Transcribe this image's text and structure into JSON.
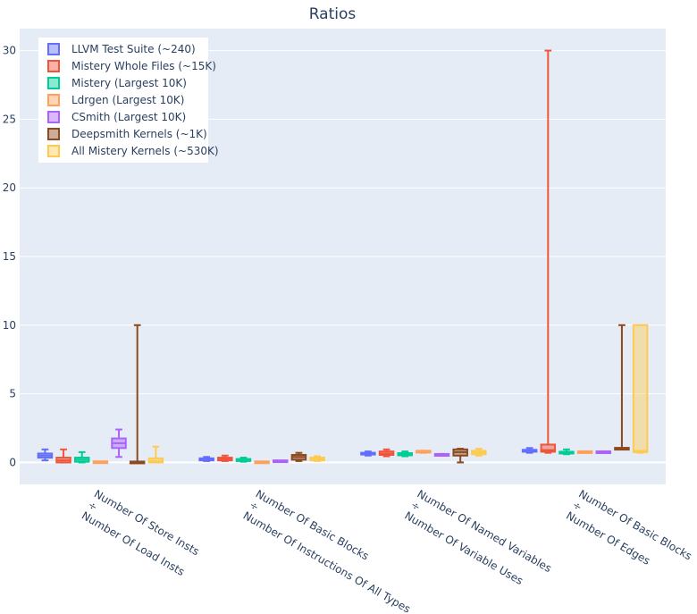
{
  "chart_data": {
    "type": "box",
    "title": "Ratios",
    "ylim": [
      -1.6,
      31.6
    ],
    "yticks": [
      0,
      5,
      10,
      15,
      20,
      25,
      30
    ],
    "grid": true,
    "legend_position": "top-left",
    "categories": [
      [
        "Number Of Store Insts",
        "÷",
        "Number Of Load Insts"
      ],
      [
        "Number Of Basic Blocks",
        "÷",
        "Number Of Instructions Of All Types"
      ],
      [
        "Number Of Named Variables",
        "÷",
        "Number Of Variable Uses"
      ],
      [
        "Number Of Basic Blocks",
        "÷",
        "Number Of Edges"
      ]
    ],
    "series": [
      {
        "name": "LLVM Test Suite (~240)",
        "color": "#636efa",
        "boxes": [
          {
            "min": 0.15,
            "q1": 0.35,
            "median": 0.5,
            "q3": 0.65,
            "max": 0.95
          },
          {
            "min": 0.1,
            "q1": 0.15,
            "median": 0.22,
            "q3": 0.3,
            "max": 0.4
          },
          {
            "min": 0.5,
            "q1": 0.58,
            "median": 0.65,
            "q3": 0.7,
            "max": 0.8
          },
          {
            "min": 0.7,
            "q1": 0.78,
            "median": 0.85,
            "q3": 0.92,
            "max": 1.05
          }
        ]
      },
      {
        "name": "Mistery Whole Files (~15K)",
        "color": "#ef553b",
        "boxes": [
          {
            "min": 0.0,
            "q1": 0.0,
            "median": 0.15,
            "q3": 0.35,
            "max": 0.95
          },
          {
            "min": 0.1,
            "q1": 0.15,
            "median": 0.25,
            "q3": 0.35,
            "max": 0.5
          },
          {
            "min": 0.45,
            "q1": 0.55,
            "median": 0.65,
            "q3": 0.8,
            "max": 0.95
          },
          {
            "min": 0.7,
            "q1": 0.78,
            "median": 0.9,
            "q3": 1.3,
            "max": 30.0
          }
        ]
      },
      {
        "name": "Mistery (Largest 10K)",
        "color": "#00cc96",
        "boxes": [
          {
            "min": 0.0,
            "q1": 0.05,
            "median": 0.2,
            "q3": 0.35,
            "max": 0.75
          },
          {
            "min": 0.05,
            "q1": 0.1,
            "median": 0.18,
            "q3": 0.25,
            "max": 0.35
          },
          {
            "min": 0.45,
            "q1": 0.52,
            "median": 0.6,
            "q3": 0.68,
            "max": 0.8
          },
          {
            "min": 0.6,
            "q1": 0.65,
            "median": 0.72,
            "q3": 0.78,
            "max": 0.95
          }
        ]
      },
      {
        "name": "Ldrgen (Largest 10K)",
        "color": "#ffa15a",
        "boxes": [
          {
            "min": -0.02,
            "q1": 0.0,
            "median": 0.01,
            "q3": 0.03,
            "max": 0.05
          },
          {
            "min": -0.02,
            "q1": 0.0,
            "median": 0.01,
            "q3": 0.02,
            "max": 0.03
          },
          {
            "min": 0.7,
            "q1": 0.75,
            "median": 0.78,
            "q3": 0.82,
            "max": 0.85
          },
          {
            "min": 0.7,
            "q1": 0.72,
            "median": 0.75,
            "q3": 0.78,
            "max": 0.8
          }
        ]
      },
      {
        "name": "CSmith (Largest 10K)",
        "color": "#ab63fa",
        "boxes": [
          {
            "min": 0.4,
            "q1": 1.05,
            "median": 1.4,
            "q3": 1.75,
            "max": 2.4
          },
          {
            "min": 0.05,
            "q1": 0.07,
            "median": 0.08,
            "q3": 0.1,
            "max": 0.12
          },
          {
            "min": 0.5,
            "q1": 0.52,
            "median": 0.55,
            "q3": 0.58,
            "max": 0.62
          },
          {
            "min": 0.7,
            "q1": 0.72,
            "median": 0.75,
            "q3": 0.77,
            "max": 0.8
          }
        ]
      },
      {
        "name": "Deepsmith Kernels (~1K)",
        "color": "#8c4a1e",
        "boxes": [
          {
            "min": 0.0,
            "q1": 0.0,
            "median": 0.0,
            "q3": 0.0,
            "max": 10.0
          },
          {
            "min": 0.1,
            "q1": 0.2,
            "median": 0.4,
            "q3": 0.55,
            "max": 0.7
          },
          {
            "min": 0.0,
            "q1": 0.5,
            "median": 0.75,
            "q3": 0.95,
            "max": 1.0
          },
          {
            "min": 1.0,
            "q1": 1.0,
            "median": 1.0,
            "q3": 1.0,
            "max": 10.0
          }
        ]
      },
      {
        "name": "All Mistery Kernels (~530K)",
        "color": "#fecb52",
        "boxes": [
          {
            "min": 0.0,
            "q1": 0.0,
            "median": 0.1,
            "q3": 0.3,
            "max": 1.15
          },
          {
            "min": 0.1,
            "q1": 0.15,
            "median": 0.25,
            "q3": 0.35,
            "max": 0.45
          },
          {
            "min": 0.5,
            "q1": 0.6,
            "median": 0.72,
            "q3": 0.85,
            "max": 1.0
          },
          {
            "min": 0.7,
            "q1": 0.75,
            "median": 0.85,
            "q3": 10.0,
            "max": 10.0
          }
        ]
      }
    ]
  }
}
